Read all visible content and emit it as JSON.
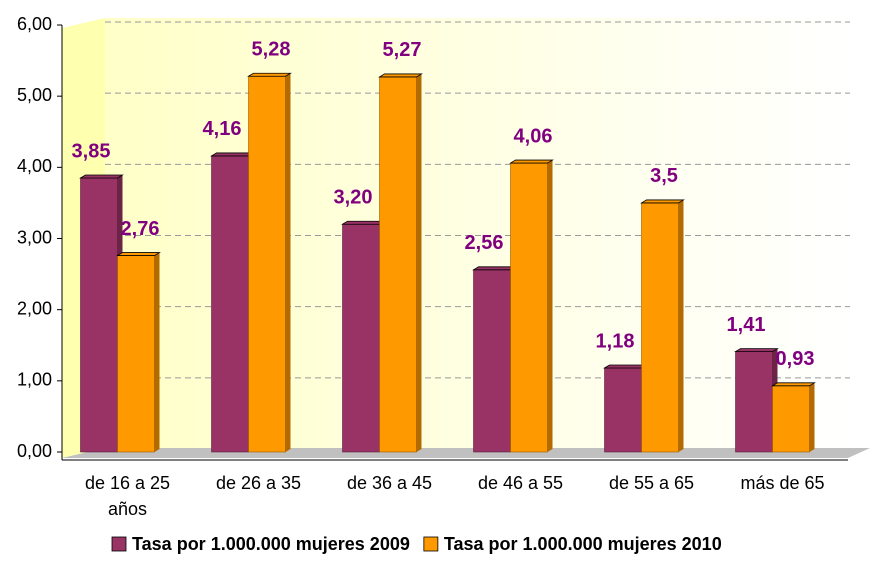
{
  "chart_data": {
    "type": "bar",
    "categories": [
      "de 16 a 25 años",
      "de 26 a 35",
      "de 36 a 45",
      "de 46 a 55",
      "de 55 a 65",
      "más de 65"
    ],
    "series": [
      {
        "name": "Tasa por 1.000.000 mujeres 2009",
        "color": "#993366",
        "values": [
          3.85,
          4.16,
          3.2,
          2.56,
          1.18,
          1.41
        ],
        "value_labels": [
          "3,85",
          "4,16",
          "3,20",
          "2,56",
          "1,18",
          "1,41"
        ]
      },
      {
        "name": "Tasa por 1.000.000 mujeres 2010",
        "color": "#ff9900",
        "values": [
          2.76,
          5.28,
          5.27,
          4.06,
          3.5,
          0.93
        ],
        "value_labels": [
          "2,76",
          "5,28",
          "5,27",
          "4,06",
          "3,5",
          "0,93"
        ]
      }
    ],
    "ylim": [
      0,
      6
    ],
    "yticks": [
      {
        "value": 0,
        "label": "0,00"
      },
      {
        "value": 1,
        "label": "1,00"
      },
      {
        "value": 2,
        "label": "2,00"
      },
      {
        "value": 3,
        "label": "3,00"
      },
      {
        "value": 4,
        "label": "4,00"
      },
      {
        "value": 5,
        "label": "5,00"
      },
      {
        "value": 6,
        "label": "6,00"
      }
    ],
    "grid": true,
    "legend": "bottom"
  }
}
